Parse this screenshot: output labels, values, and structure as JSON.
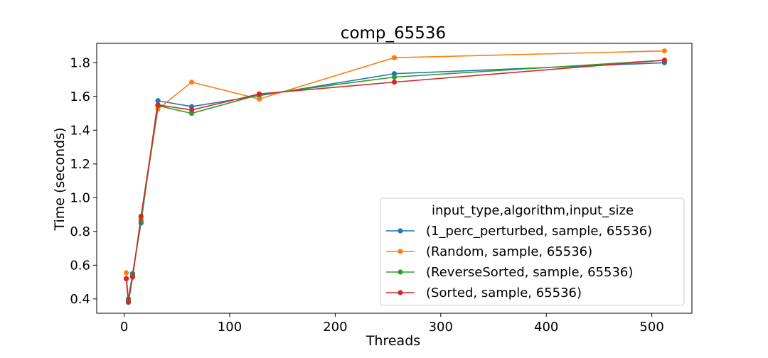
{
  "chart_data": {
    "type": "line",
    "title": "comp_65536",
    "xlabel": "Threads",
    "ylabel": "Time (seconds)",
    "xlim": [
      -26,
      538
    ],
    "ylim": [
      0.315,
      1.915
    ],
    "xticks": [
      0,
      100,
      200,
      300,
      400,
      500
    ],
    "yticks": [
      0.4,
      0.6,
      0.8,
      1.0,
      1.2,
      1.4,
      1.6,
      1.8
    ],
    "x": [
      2,
      4,
      8,
      16,
      32,
      64,
      128,
      256,
      512
    ],
    "legend_title": "input_type,algorithm,input_size",
    "legend_position": "lower-right",
    "grid": false,
    "series": [
      {
        "name": "(1_perc_perturbed, sample, 65536)",
        "color": "#1f77b4",
        "values": [
          0.52,
          0.4,
          0.55,
          0.85,
          1.575,
          1.54,
          1.605,
          1.735,
          1.8
        ]
      },
      {
        "name": "(Random, sample, 65536)",
        "color": "#ff7f0e",
        "values": [
          0.555,
          0.385,
          0.53,
          0.88,
          1.525,
          1.685,
          1.585,
          1.83,
          1.87
        ]
      },
      {
        "name": "(ReverseSorted, sample, 65536)",
        "color": "#2ca02c",
        "values": [
          0.52,
          0.39,
          0.54,
          0.865,
          1.545,
          1.5,
          1.61,
          1.715,
          1.815
        ]
      },
      {
        "name": "(Sorted, sample, 65536)",
        "color": "#d62728",
        "values": [
          0.52,
          0.38,
          0.53,
          0.89,
          1.55,
          1.52,
          1.615,
          1.685,
          1.815
        ]
      }
    ]
  }
}
